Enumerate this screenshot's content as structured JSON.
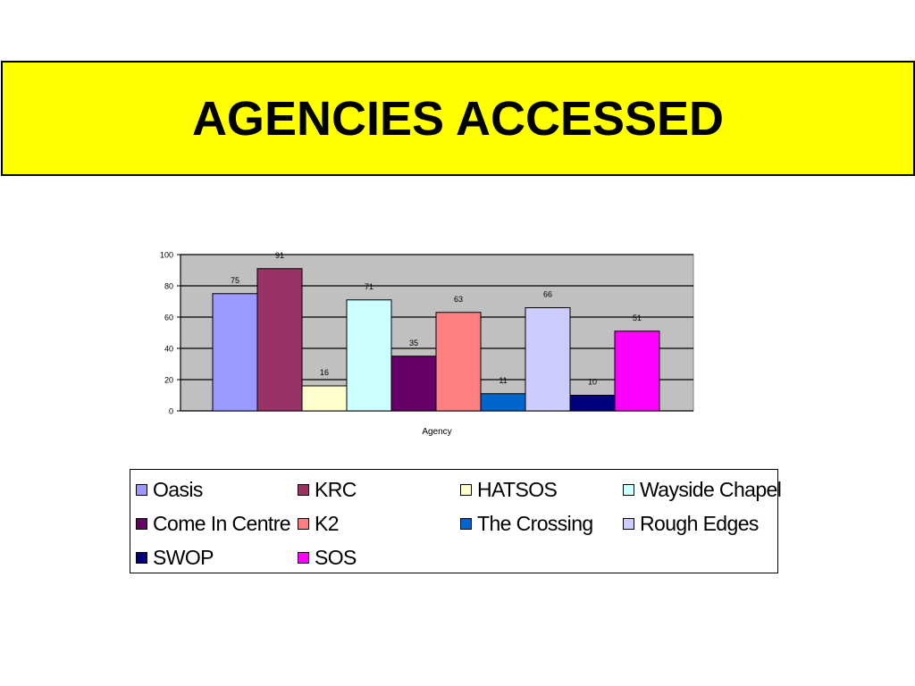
{
  "title": "AGENCIES ACCESSED",
  "chart_data": {
    "type": "bar",
    "categories": [
      "Oasis",
      "KRC",
      "HATSOS",
      "Wayside Chapel",
      "Come In Centre",
      "K2",
      "The Crossing",
      "Rough Edges",
      "SWOP",
      "SOS"
    ],
    "values": [
      75,
      91,
      16,
      71,
      35,
      63,
      11,
      66,
      10,
      51
    ],
    "colors": [
      "#9999ff",
      "#993366",
      "#ffffcc",
      "#ccffff",
      "#660066",
      "#ff8080",
      "#0066cc",
      "#ccccff",
      "#000080",
      "#ff00ff"
    ],
    "xlabel": "Agency",
    "ylabel": "",
    "ylim": [
      0,
      100
    ],
    "yticks": [
      "0",
      "20",
      "40",
      "60",
      "80",
      "100"
    ],
    "grid": true,
    "plot_background": "#c0c0c0",
    "legend_position": "bottom"
  }
}
